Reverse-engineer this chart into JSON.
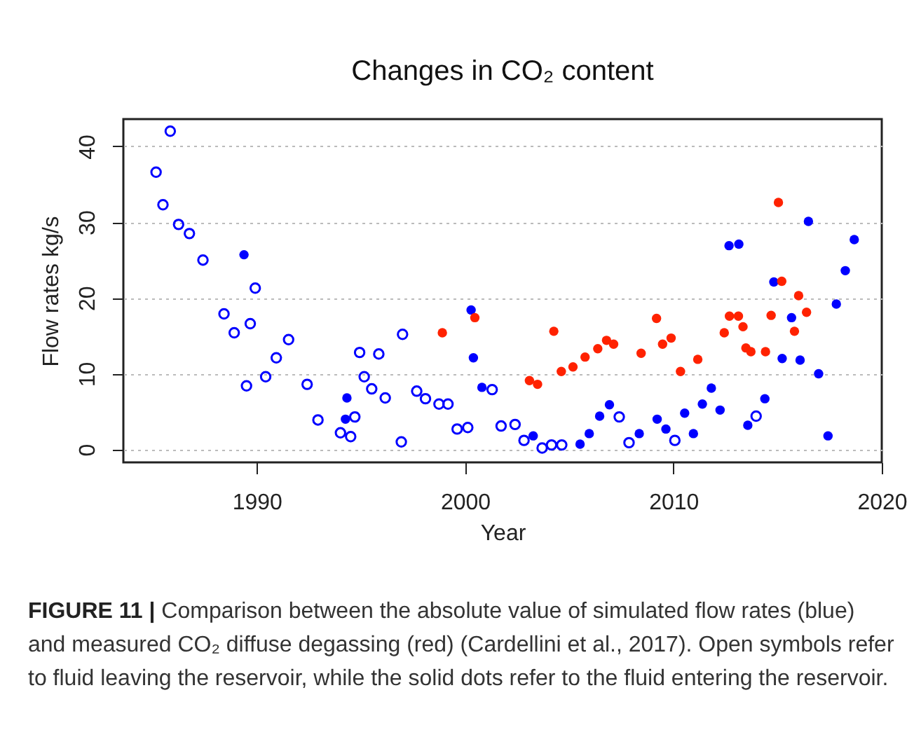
{
  "chart_data": {
    "type": "scatter",
    "title": "Changes in CO₂ content",
    "xlabel": "Year",
    "ylabel": "Flow rates kg/s",
    "annotations": [
      "FIGURE 11 | Comparison between the absolute value of simulated flow rates (blue) and measured CO₂ diffuse degassing (red) (Cardellini et al., 2017). Open symbols refer to fluid leaving the reservoir, while the solid dots refer to the fluid entering the reservoir."
    ],
    "xlim": [
      1983.6,
      2020
    ],
    "xticks": [
      1990,
      2000,
      2010,
      2020
    ],
    "ylim": [
      -1.7,
      43.6
    ],
    "yticks": [
      0,
      10,
      20,
      30,
      40
    ],
    "grid": "y",
    "marker": "circle",
    "series": [
      {
        "color": "#0000ff",
        "x": [
          1985.17,
          1985.5,
          1985.85,
          1986.25,
          1986.77,
          1987.42,
          1988.43,
          1988.92,
          1989.51,
          1989.69,
          1989.93,
          1990.43,
          1990.94,
          1991.53,
          1992.42,
          1992.94,
          1994.02,
          1994.51,
          1994.71,
          1994.94,
          1995.16,
          1995.52,
          1995.86,
          1996.17,
          1996.94,
          1997.0,
          1997.68,
          1998.1,
          1998.75,
          1999.18,
          1999.62,
          2000.13,
          2001.3,
          2001.73,
          2002.4,
          2002.83,
          2003.7,
          2004.15,
          2004.64,
          2007.4,
          2007.87,
          2010.07,
          2013.97
        ],
        "values": [
          36.6,
          32.3,
          42.0,
          29.7,
          28.5,
          25.0,
          17.9,
          15.4,
          8.4,
          16.6,
          21.3,
          9.6,
          12.1,
          14.5,
          8.6,
          3.9,
          2.2,
          1.7,
          4.3,
          12.8,
          9.6,
          8.0,
          12.6,
          6.8,
          1.0,
          15.2,
          7.7,
          6.7,
          6.0,
          6.0,
          2.7,
          2.9,
          7.9,
          3.1,
          3.3,
          1.2,
          0.2,
          0.6,
          0.6,
          4.3,
          0.9,
          1.2,
          4.4
        ]
      },
      {
        "color": "#0000ff",
        "x": [
          1989.39,
          1994.26,
          1994.33,
          2000.29,
          2000.4,
          2000.81,
          2003.27,
          2005.52,
          2005.96,
          2006.46,
          2006.93,
          2008.36,
          2009.22,
          2009.64,
          2010.54,
          2010.96,
          2011.39,
          2011.82,
          2012.24,
          2012.67,
          2013.14,
          2013.57,
          2014.39,
          2014.82,
          2015.22,
          2015.67,
          2016.08,
          2016.48,
          2016.97,
          2017.42,
          2017.82,
          2018.25,
          2018.68
        ],
        "values": [
          25.7,
          4.0,
          6.8,
          18.4,
          12.1,
          8.2,
          1.8,
          0.7,
          2.1,
          4.4,
          5.9,
          2.1,
          4.0,
          2.7,
          4.8,
          2.1,
          6.0,
          8.1,
          5.2,
          26.9,
          27.1,
          3.2,
          6.7,
          22.1,
          12.0,
          17.4,
          11.8,
          30.1,
          10.0,
          1.8,
          19.2,
          23.6,
          27.7
        ]
      },
      {
        "color": "#ff2200",
        "x": [
          1998.91,
          2000.47,
          2003.09,
          2003.48,
          2004.26,
          2004.62,
          2005.18,
          2005.76,
          2006.37,
          2006.79,
          2007.13,
          2008.45,
          2009.19,
          2009.48,
          2009.89,
          2010.34,
          2011.17,
          2012.44,
          2012.69,
          2013.12,
          2013.34,
          2013.48,
          2013.72,
          2014.42,
          2014.69,
          2015.04,
          2015.2,
          2015.81,
          2016.01,
          2016.39
        ],
        "values": [
          15.4,
          17.4,
          9.1,
          8.6,
          15.6,
          10.3,
          10.9,
          12.2,
          13.3,
          14.4,
          13.9,
          12.7,
          17.3,
          13.9,
          14.7,
          10.3,
          11.9,
          15.4,
          17.6,
          17.6,
          16.2,
          13.4,
          12.9,
          12.9,
          17.7,
          32.6,
          22.2,
          15.6,
          20.3,
          18.1
        ]
      }
    ]
  }
}
